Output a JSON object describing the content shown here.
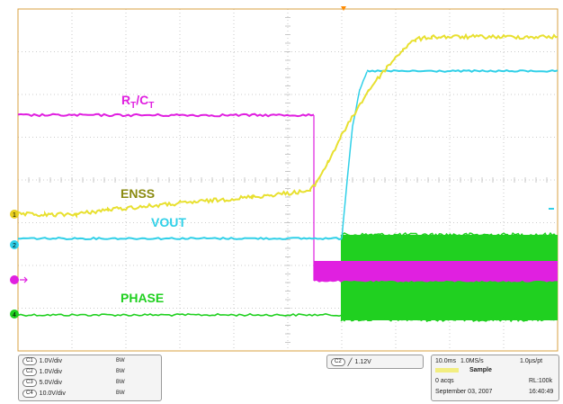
{
  "chart_data": {
    "type": "line",
    "title": "",
    "xlabel": "",
    "ylabel": "",
    "grid": true,
    "series": [
      {
        "name": "RT/CT",
        "color": "#e020e0"
      },
      {
        "name": "ENSS",
        "color": "#e8e030"
      },
      {
        "name": "VOUT",
        "color": "#30d0e8"
      },
      {
        "name": "PHASE",
        "color": "#20d020"
      }
    ]
  },
  "labels": {
    "rtct_main": "R",
    "rtct_sub1": "T",
    "rtct_slash": "/C",
    "rtct_sub2": "T",
    "enss": "ENSS",
    "vout": "VOUT",
    "phase": "PHASE"
  },
  "markers": {
    "ch1": "1",
    "ch2": "2",
    "ch4": "4"
  },
  "channels": [
    {
      "chip": "C1",
      "scale": "1.0V/div",
      "bw": "BW"
    },
    {
      "chip": "C2",
      "scale": "1.0V/div",
      "bw": "BW"
    },
    {
      "chip": "C3",
      "scale": "5.0V/div",
      "bw": "BW"
    },
    {
      "chip": "C4",
      "scale": "10.0V/div",
      "bw": "BW"
    }
  ],
  "trigger": {
    "chip": "C2",
    "level": "1.12V"
  },
  "acquisition": {
    "timebase": "10.0ms",
    "sample_rate": "1.0MS/s",
    "resolution": "1.0µs/pt",
    "mode": "Sample",
    "acqs": "0 acqs",
    "record_length": "RL:100k",
    "date": "September 03, 2007",
    "time": "16:40:49"
  },
  "colors": {
    "magenta": "#e020e0",
    "yellow": "#e8e030",
    "cyan": "#30d0e8",
    "green": "#20d020",
    "grid": "#bdbdbd",
    "frame": "#d8a040"
  }
}
